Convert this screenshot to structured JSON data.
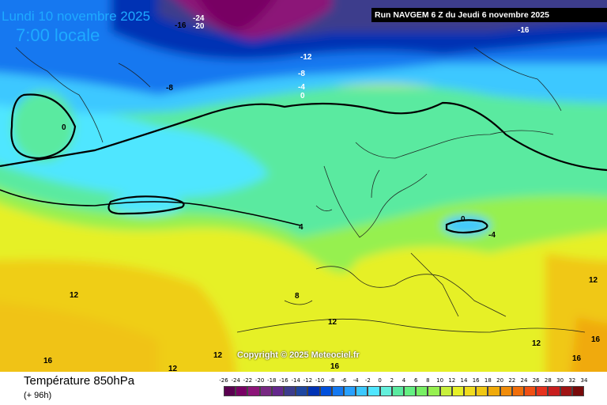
{
  "header": {
    "date": "Lundi 10 novembre 2025",
    "time": "7:00 locale",
    "run": "Run NAVGEM 6 Z du Jeudi 6 novembre 2025"
  },
  "copyright": "Copyright © 2025 Meteociel.fr",
  "parameter": {
    "name": "Température 850hPa",
    "lead": "(+ 96h)"
  },
  "map_labels": [
    {
      "id": "lbl-m24",
      "text": "-24"
    },
    {
      "id": "lbl-m20",
      "text": "-20"
    },
    {
      "id": "lbl-m16-a",
      "text": "-16"
    },
    {
      "id": "lbl-m16-b",
      "text": "-16"
    },
    {
      "id": "lbl-m12",
      "text": "-12"
    },
    {
      "id": "lbl-m8-a",
      "text": "-8"
    },
    {
      "id": "lbl-m8-b",
      "text": "-8"
    },
    {
      "id": "lbl-m4",
      "text": "-4"
    },
    {
      "id": "lbl-0-a",
      "text": "0"
    },
    {
      "id": "lbl-0-b",
      "text": "0"
    },
    {
      "id": "lbl-0-c",
      "text": "0"
    },
    {
      "id": "lbl-m4-b",
      "text": "-4"
    },
    {
      "id": "lbl-4",
      "text": "4"
    },
    {
      "id": "lbl-8",
      "text": "8"
    },
    {
      "id": "lbl-12-a",
      "text": "12"
    },
    {
      "id": "lbl-12-b",
      "text": "12"
    },
    {
      "id": "lbl-12-c",
      "text": "12"
    },
    {
      "id": "lbl-12-d",
      "text": "12"
    },
    {
      "id": "lbl-12-e",
      "text": "12"
    },
    {
      "id": "lbl-16-a",
      "text": "16"
    },
    {
      "id": "lbl-16-b",
      "text": "16"
    },
    {
      "id": "lbl-16-c",
      "text": "16"
    },
    {
      "id": "lbl-16-d",
      "text": "16"
    },
    {
      "id": "lbl-12-f",
      "text": "12"
    }
  ],
  "scale": {
    "ticks": [
      "-26",
      "-24",
      "-22",
      "-20",
      "-18",
      "-16",
      "-14",
      "-12",
      "-10",
      "-8",
      "-6",
      "-4",
      "-2",
      "0",
      "2",
      "4",
      "6",
      "8",
      "10",
      "12",
      "14",
      "16",
      "18",
      "20",
      "22",
      "24",
      "26",
      "28",
      "30",
      "32",
      "34"
    ],
    "colors": [
      "#5a0050",
      "#780064",
      "#8c1478",
      "#782882",
      "#64288c",
      "#3c3c8c",
      "#1e46a0",
      "#0032b4",
      "#0050dc",
      "#1478f0",
      "#28a0ff",
      "#3cc8ff",
      "#50e6ff",
      "#64f0dc",
      "#5aeaa0",
      "#64f082",
      "#78f064",
      "#96f050",
      "#c8f03c",
      "#e6f028",
      "#f0dc1e",
      "#f0c814",
      "#f0aa0a",
      "#f08c0a",
      "#f06e0a",
      "#f05014",
      "#e6321e",
      "#c81e1e",
      "#a01414",
      "#780a0a"
    ]
  }
}
